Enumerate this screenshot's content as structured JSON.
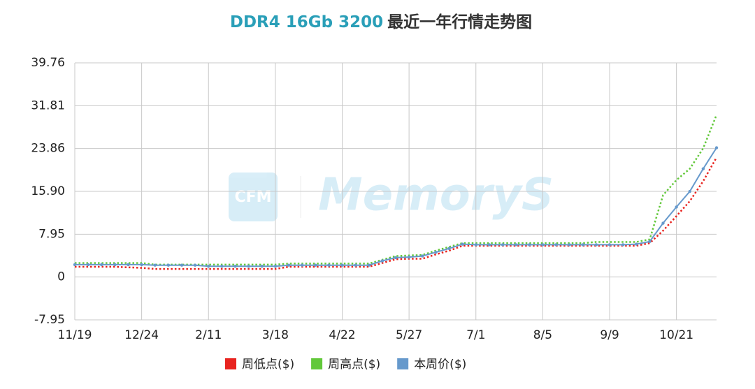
{
  "chart_data": {
    "type": "line",
    "title": [
      "DDR4 16Gb 3200",
      "最近一年行情走势图"
    ],
    "watermark": [
      "CFM",
      "MemoryS"
    ],
    "categories": [
      "11/19",
      null,
      null,
      null,
      null,
      "12/24",
      null,
      null,
      null,
      null,
      "2/11",
      null,
      null,
      null,
      null,
      "3/18",
      null,
      null,
      null,
      null,
      "4/22",
      null,
      null,
      null,
      null,
      "5/27",
      null,
      null,
      null,
      null,
      "7/1",
      null,
      null,
      null,
      null,
      "8/5",
      null,
      null,
      null,
      null,
      "9/9",
      null,
      null,
      null,
      null,
      "10/21",
      null,
      null,
      null
    ],
    "series": [
      {
        "name": "周低点($)",
        "color": "#e8231f",
        "style": "dotted",
        "values": [
          1.9,
          1.9,
          1.9,
          1.9,
          1.8,
          1.7,
          1.5,
          1.5,
          1.5,
          1.5,
          1.5,
          1.5,
          1.5,
          1.5,
          1.5,
          1.5,
          1.9,
          1.9,
          1.9,
          1.9,
          1.9,
          1.9,
          1.9,
          2.6,
          3.3,
          3.4,
          3.4,
          4.2,
          4.9,
          5.8,
          5.8,
          5.8,
          5.8,
          5.8,
          5.8,
          5.8,
          5.8,
          5.8,
          5.8,
          5.8,
          5.8,
          5.8,
          5.8,
          6.3,
          8.6,
          11.3,
          14.1,
          17.8,
          22.2
        ]
      },
      {
        "name": "周高点($)",
        "color": "#62c83a",
        "style": "dotted",
        "values": [
          2.6,
          2.6,
          2.6,
          2.6,
          2.6,
          2.6,
          2.3,
          2.3,
          2.3,
          2.3,
          2.3,
          2.3,
          2.3,
          2.3,
          2.3,
          2.3,
          2.5,
          2.5,
          2.5,
          2.5,
          2.5,
          2.5,
          2.5,
          3.2,
          3.9,
          4.0,
          4.1,
          4.9,
          5.6,
          6.3,
          6.3,
          6.3,
          6.3,
          6.3,
          6.3,
          6.3,
          6.3,
          6.3,
          6.3,
          6.5,
          6.5,
          6.5,
          6.5,
          7.0,
          15.2,
          18.0,
          20.1,
          23.9,
          30.1
        ]
      },
      {
        "name": "本周价($)",
        "color": "#6699cc",
        "style": "solid",
        "values": [
          2.3,
          2.3,
          2.3,
          2.3,
          2.3,
          2.3,
          2.2,
          2.2,
          2.2,
          2.2,
          2.0,
          2.0,
          2.0,
          2.0,
          2.0,
          2.0,
          2.2,
          2.2,
          2.2,
          2.2,
          2.2,
          2.2,
          2.2,
          3.0,
          3.6,
          3.7,
          3.9,
          4.6,
          5.3,
          6.1,
          6.0,
          6.0,
          6.0,
          6.0,
          6.0,
          6.0,
          6.0,
          6.0,
          6.0,
          6.0,
          6.0,
          6.0,
          6.1,
          6.6,
          10.0,
          13.0,
          15.9,
          20.1,
          24.0
        ]
      }
    ],
    "ylim": [
      -7.95,
      39.76
    ],
    "yticks": [
      -7.95,
      0,
      7.95,
      {
        "value": 15.9,
        "label": "15.90"
      },
      23.86,
      31.81,
      39.76
    ],
    "grid": true
  }
}
